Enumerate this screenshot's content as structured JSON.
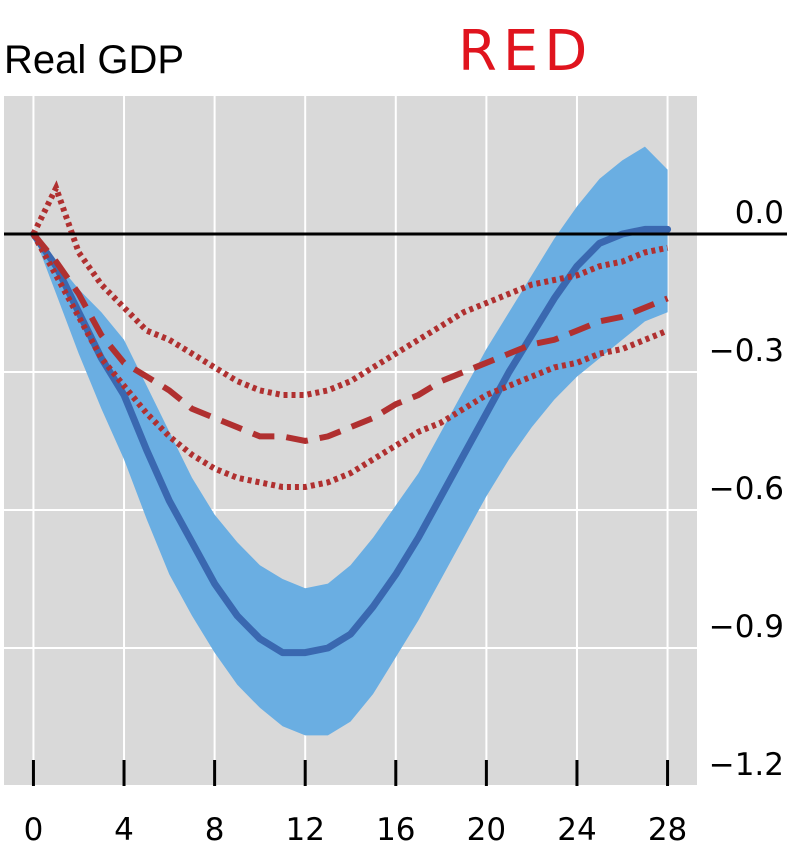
{
  "chart_data": {
    "type": "line",
    "title": "Real GDP",
    "annotation": "RED",
    "xlabel": "",
    "ylabel": "",
    "xlim": [
      -1.3,
      29.3
    ],
    "ylim": [
      -1.2,
      0.3
    ],
    "x_ticks": [
      0,
      4,
      8,
      12,
      16,
      20,
      24,
      28
    ],
    "x_tick_labels": [
      "0",
      "4",
      "8",
      "12",
      "16",
      "20",
      "24",
      "28"
    ],
    "y_ticks": [
      0.0,
      -0.3,
      -0.6,
      -0.9,
      -1.2
    ],
    "y_tick_labels": [
      "0.0",
      "−0.3",
      "−0.6",
      "−0.9",
      "−1.2"
    ],
    "grid": true,
    "zero_line": 0,
    "colors": {
      "background": "#d9d9d9",
      "grid": "#ffffff",
      "band": "#6aaee2",
      "median": "#3a68b0",
      "red": "#b03030",
      "axis": "#000000"
    },
    "x": [
      0,
      1,
      2,
      3,
      4,
      5,
      6,
      7,
      8,
      9,
      10,
      11,
      12,
      13,
      14,
      15,
      16,
      17,
      18,
      19,
      20,
      21,
      22,
      23,
      24,
      25,
      26,
      27,
      28
    ],
    "series": [
      {
        "style": "band",
        "upper": [
          0.0,
          -0.06,
          -0.12,
          -0.17,
          -0.23,
          -0.33,
          -0.43,
          -0.53,
          -0.61,
          -0.67,
          -0.72,
          -0.75,
          -0.77,
          -0.76,
          -0.72,
          -0.66,
          -0.59,
          -0.52,
          -0.43,
          -0.34,
          -0.25,
          -0.17,
          -0.09,
          -0.01,
          0.06,
          0.12,
          0.16,
          0.19,
          0.14
        ],
        "lower": [
          0.0,
          -0.13,
          -0.26,
          -0.38,
          -0.49,
          -0.62,
          -0.74,
          -0.83,
          -0.91,
          -0.98,
          -1.03,
          -1.07,
          -1.09,
          -1.09,
          -1.06,
          -1.0,
          -0.92,
          -0.84,
          -0.75,
          -0.66,
          -0.57,
          -0.49,
          -0.42,
          -0.36,
          -0.31,
          -0.27,
          -0.23,
          -0.19,
          -0.17
        ]
      },
      {
        "style": "solid",
        "values": [
          0.0,
          -0.07,
          -0.17,
          -0.27,
          -0.35,
          -0.47,
          -0.58,
          -0.67,
          -0.76,
          -0.83,
          -0.88,
          -0.91,
          -0.91,
          -0.9,
          -0.87,
          -0.81,
          -0.74,
          -0.66,
          -0.57,
          -0.48,
          -0.39,
          -0.3,
          -0.22,
          -0.14,
          -0.07,
          -0.02,
          0.0,
          0.01,
          0.01
        ]
      },
      {
        "style": "dashed",
        "values": [
          0.0,
          -0.06,
          -0.13,
          -0.22,
          -0.28,
          -0.31,
          -0.34,
          -0.38,
          -0.4,
          -0.42,
          -0.44,
          -0.44,
          -0.45,
          -0.44,
          -0.42,
          -0.4,
          -0.37,
          -0.35,
          -0.32,
          -0.3,
          -0.28,
          -0.26,
          -0.24,
          -0.23,
          -0.21,
          -0.19,
          -0.18,
          -0.16,
          -0.14
        ]
      },
      {
        "style": "dotted",
        "values": [
          0.0,
          0.1,
          -0.04,
          -0.11,
          -0.16,
          -0.21,
          -0.23,
          -0.26,
          -0.29,
          -0.32,
          -0.34,
          -0.35,
          -0.35,
          -0.34,
          -0.32,
          -0.29,
          -0.26,
          -0.23,
          -0.2,
          -0.17,
          -0.15,
          -0.13,
          -0.11,
          -0.1,
          -0.09,
          -0.07,
          -0.06,
          -0.04,
          -0.03
        ]
      },
      {
        "style": "dotted",
        "values": [
          0.0,
          -0.09,
          -0.18,
          -0.27,
          -0.33,
          -0.39,
          -0.44,
          -0.48,
          -0.51,
          -0.53,
          -0.54,
          -0.55,
          -0.55,
          -0.54,
          -0.52,
          -0.49,
          -0.46,
          -0.43,
          -0.41,
          -0.38,
          -0.35,
          -0.33,
          -0.31,
          -0.29,
          -0.28,
          -0.26,
          -0.25,
          -0.23,
          -0.21
        ]
      }
    ]
  }
}
